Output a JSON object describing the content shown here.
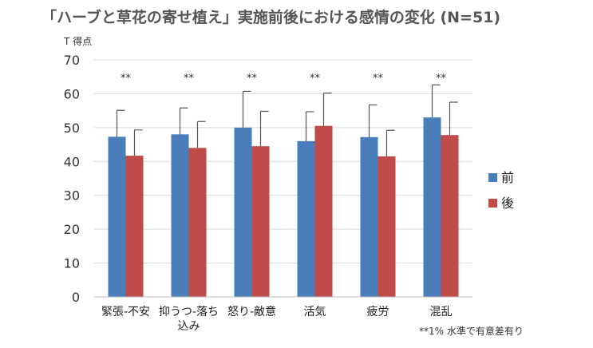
{
  "chart_data": {
    "type": "bar",
    "title": "「ハーブと草花の寄せ植え」実施前後における感情の変化 (N=51)",
    "ylabel": "T 得点",
    "ylim": [
      0,
      70
    ],
    "yticks": [
      0,
      10,
      20,
      30,
      40,
      50,
      60,
      70
    ],
    "grid": true,
    "legend_position": "right",
    "categories": [
      [
        "緊張-不安"
      ],
      [
        "抑うつ-落ち",
        "込み"
      ],
      [
        "怒り-敵意"
      ],
      [
        "活気"
      ],
      [
        "疲労"
      ],
      [
        "混乱"
      ]
    ],
    "significance": [
      "**",
      "**",
      "**",
      "**",
      "**",
      "**"
    ],
    "series": [
      {
        "name": "前",
        "color": "#4a7ebb",
        "values": [
          47.3,
          48.0,
          50.0,
          46.0,
          47.2,
          53.0
        ],
        "error": [
          7.8,
          7.8,
          10.7,
          8.7,
          9.5,
          9.6
        ]
      },
      {
        "name": "後",
        "color": "#be4b48",
        "values": [
          41.7,
          44.0,
          44.5,
          50.5,
          41.5,
          47.8
        ],
        "error": [
          7.6,
          7.8,
          10.3,
          9.7,
          7.7,
          9.7
        ]
      }
    ],
    "note": "**1% 水準で有意差有り"
  }
}
